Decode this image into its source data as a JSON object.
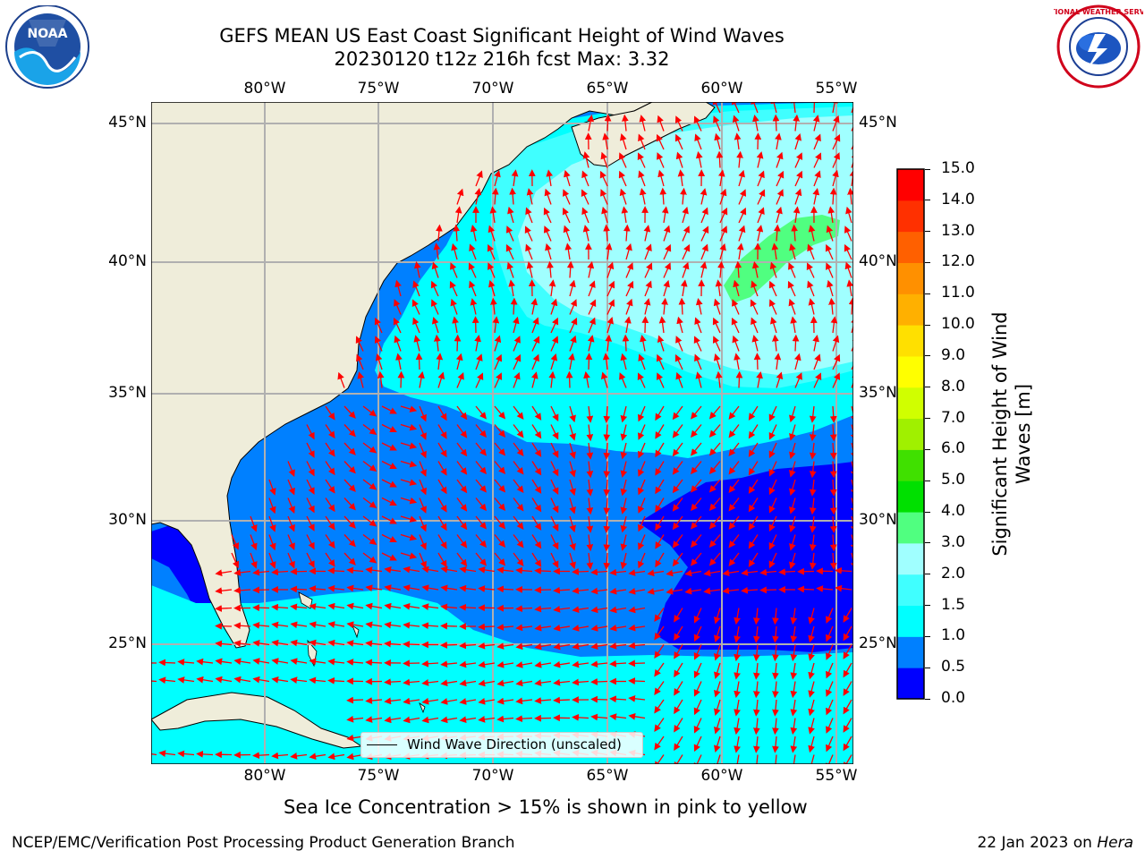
{
  "header": {
    "title_line1": "GEFS MEAN US East Coast Significant Height of Wind Waves",
    "title_line2": "20230120 t12z 216h fcst   Max: 3.32"
  },
  "logos": {
    "left_text": "NOAA",
    "right_text": "NATIONAL WEATHER SERVICE"
  },
  "map": {
    "lon_ticks": [
      "80°W",
      "75°W",
      "70°W",
      "65°W",
      "60°W",
      "55°W"
    ],
    "lat_ticks": [
      "45°N",
      "40°N",
      "35°N",
      "30°N",
      "25°N"
    ],
    "legend_label": "Wind Wave Direction (unscaled)",
    "extent": {
      "lon_min": -85,
      "lon_max": -54.3,
      "lat_min": 20.5,
      "lat_max": 45.8
    },
    "colors": {
      "land": "#efedda",
      "arrow": "#ff0000",
      "grid": "#b0b0b0"
    }
  },
  "colorbar": {
    "title": "Significant Height of Wind Waves [m]",
    "title_line1": "Significant Height of Wind",
    "title_line2": "Waves [m]",
    "tick_labels": [
      "0.0",
      "0.5",
      "1.0",
      "1.5",
      "2.0",
      "3.0",
      "4.0",
      "5.0",
      "6.0",
      "7.0",
      "8.0",
      "9.0",
      "10.0",
      "11.0",
      "12.0",
      "13.0",
      "14.0",
      "15.0"
    ],
    "bands": [
      {
        "from": 0.0,
        "to": 0.5,
        "color": "#0000ff"
      },
      {
        "from": 0.5,
        "to": 1.0,
        "color": "#0080ff"
      },
      {
        "from": 1.0,
        "to": 1.5,
        "color": "#00ffff"
      },
      {
        "from": 1.5,
        "to": 2.0,
        "color": "#40ffff"
      },
      {
        "from": 2.0,
        "to": 3.0,
        "color": "#a0ffff"
      },
      {
        "from": 3.0,
        "to": 4.0,
        "color": "#50ff80"
      },
      {
        "from": 4.0,
        "to": 5.0,
        "color": "#00e000"
      },
      {
        "from": 5.0,
        "to": 6.0,
        "color": "#40e000"
      },
      {
        "from": 6.0,
        "to": 7.0,
        "color": "#a0f000"
      },
      {
        "from": 7.0,
        "to": 8.0,
        "color": "#d0ff00"
      },
      {
        "from": 8.0,
        "to": 9.0,
        "color": "#ffff00"
      },
      {
        "from": 9.0,
        "to": 10.0,
        "color": "#ffe000"
      },
      {
        "from": 10.0,
        "to": 11.0,
        "color": "#ffb000"
      },
      {
        "from": 11.0,
        "to": 12.0,
        "color": "#ff9000"
      },
      {
        "from": 12.0,
        "to": 13.0,
        "color": "#ff6000"
      },
      {
        "from": 13.0,
        "to": 14.0,
        "color": "#ff3000"
      },
      {
        "from": 14.0,
        "to": 15.0,
        "color": "#ff0000"
      }
    ]
  },
  "notes": {
    "sea_ice": "Sea Ice Concentration > 15% is shown in pink to yellow"
  },
  "footer": {
    "left": "NCEP/EMC/Verification Post Processing Product Generation Branch",
    "right_date": "22 Jan 2023 on ",
    "right_host": "Hera"
  }
}
